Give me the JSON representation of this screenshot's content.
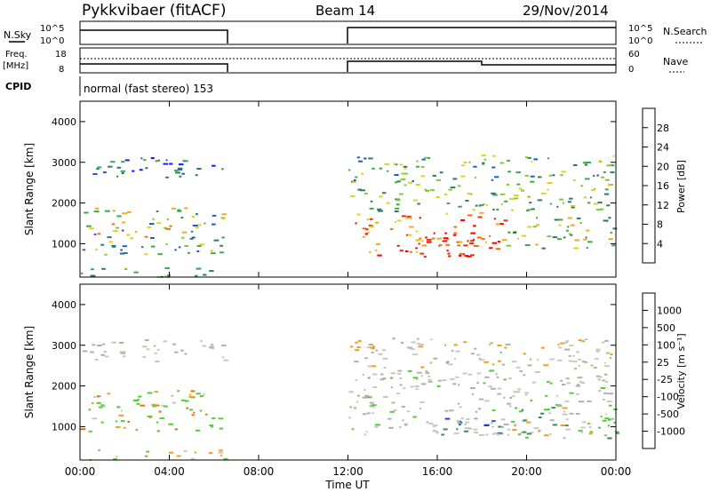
{
  "header": {
    "station": "Pykkvibaer (fitACF)",
    "beam": "Beam 14",
    "date": "29/Nov/2014"
  },
  "params": {
    "nsky_label": "N.Sky",
    "nsky_ticks": [
      "10^5",
      "10^0"
    ],
    "nsearch_label": "N.Search",
    "nsearch_ticks": [
      "10^5",
      "10^0"
    ],
    "freq_label_line1": "Freq.",
    "freq_label_line2": "[MHz]",
    "freq_ticks": [
      "18",
      "8"
    ],
    "nave_label": "Nave",
    "nave_ticks": [
      "60",
      "0"
    ],
    "cpid_label": "CPID",
    "cpid_text": "normal (fast stereo) 153"
  },
  "colors": {
    "power": [
      "#1a1aff",
      "#1f5cc8",
      "#2f7a6a",
      "#3fa84a",
      "#7acc3a",
      "#e0d020",
      "#f4a820",
      "#f27010",
      "#e63010",
      "#ff0000"
    ],
    "velocity": [
      "#1a3fd0",
      "#2a6cb0",
      "#3a8c5a",
      "#55cc33",
      "#c8c8c0",
      "#b0b0aa",
      "#f0a020",
      "#f07010",
      "#e83010",
      "#ff0000"
    ]
  },
  "chart_data": [
    {
      "type": "heatmap",
      "title": "",
      "xlabel": "Time UT",
      "ylabel": "Slant Range [km]",
      "x_ticks": [
        "00:00",
        "04:00",
        "08:00",
        "12:00",
        "16:00",
        "20:00",
        "00:00"
      ],
      "x_range_hours": [
        0,
        24
      ],
      "y_ticks": [
        "1000",
        "2000",
        "3000",
        "4000"
      ],
      "ylim": [
        180,
        4500
      ],
      "colorbar_label": "Power [dB]",
      "colorbar_ticks": [
        "4",
        "8",
        "12",
        "16",
        "20",
        "24",
        "28"
      ],
      "data_gaps_hours": [
        [
          6.5,
          12.0
        ]
      ]
    },
    {
      "type": "heatmap",
      "title": "",
      "xlabel": "Time UT",
      "ylabel": "Slant Range [km]",
      "x_ticks": [
        "00:00",
        "04:00",
        "08:00",
        "12:00",
        "16:00",
        "20:00",
        "00:00"
      ],
      "x_range_hours": [
        0,
        24
      ],
      "y_ticks": [
        "1000",
        "2000",
        "3000",
        "4000"
      ],
      "ylim": [
        180,
        4500
      ],
      "colorbar_label": "Velocity [m s⁻¹]",
      "colorbar_ticks": [
        "1000",
        "500",
        "100",
        "25",
        "-25",
        "-100",
        "-500",
        "-1000"
      ],
      "data_gaps_hours": [
        [
          6.5,
          12.0
        ]
      ]
    }
  ]
}
